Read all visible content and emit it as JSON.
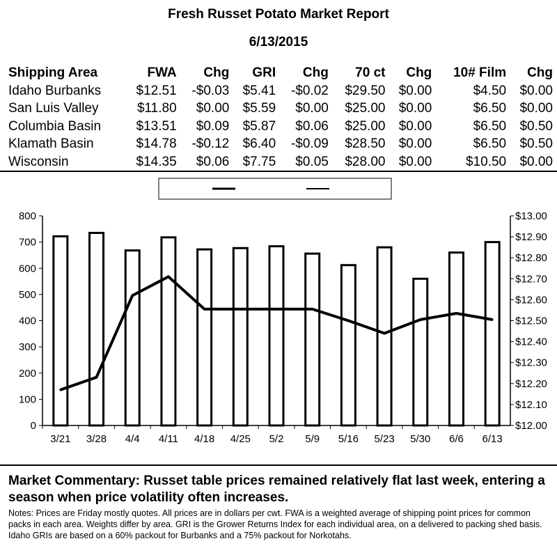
{
  "report": {
    "title": "Fresh Russet Potato Market Report",
    "date": "6/13/2015"
  },
  "table": {
    "headers": [
      "Shipping Area",
      "FWA",
      "Chg",
      "GRI",
      "Chg",
      "70 ct",
      "Chg",
      "10# Film",
      "Chg"
    ],
    "rows": [
      [
        "Idaho Burbanks",
        "$12.51",
        "-$0.03",
        "$5.41",
        "-$0.02",
        "$29.50",
        "$0.00",
        "$4.50",
        "$0.00"
      ],
      [
        "San Luis Valley",
        "$11.80",
        "$0.00",
        "$5.59",
        "$0.00",
        "$25.00",
        "$0.00",
        "$6.50",
        "$0.00"
      ],
      [
        "Columbia Basin",
        "$13.51",
        "$0.09",
        "$5.87",
        "$0.06",
        "$25.00",
        "$0.00",
        "$6.50",
        "$0.50"
      ],
      [
        "Klamath Basin",
        "$14.78",
        "-$0.12",
        "$6.40",
        "-$0.09",
        "$28.50",
        "$0.00",
        "$6.50",
        "$0.50"
      ],
      [
        "Wisconsin",
        "$14.35",
        "$0.06",
        "$7.75",
        "$0.05",
        "$28.00",
        "$0.00",
        "$10.50",
        "$0.00"
      ]
    ]
  },
  "chart_data": {
    "type": "bar",
    "title": "",
    "categories": [
      "3/21",
      "3/28",
      "4/4",
      "4/11",
      "4/18",
      "4/25",
      "5/2",
      "5/9",
      "5/16",
      "5/23",
      "5/30",
      "6/6",
      "6/13"
    ],
    "series": [
      {
        "type": "bar",
        "axis": "left",
        "values": [
          722,
          735,
          668,
          718,
          672,
          677,
          684,
          656,
          612,
          680,
          560,
          660,
          700
        ]
      },
      {
        "type": "line",
        "axis": "right",
        "values": [
          12.17,
          12.23,
          12.62,
          12.71,
          12.555,
          12.555,
          12.555,
          12.555,
          12.5,
          12.44,
          12.505,
          12.535,
          12.505
        ]
      }
    ],
    "y_left": {
      "min": 0,
      "max": 800,
      "step": 100,
      "ticks": [
        "0",
        "100",
        "200",
        "300",
        "400",
        "500",
        "600",
        "700",
        "800"
      ]
    },
    "y_right": {
      "min": 12.0,
      "max": 13.0,
      "step": 0.1,
      "ticks": [
        "$12.00",
        "$12.10",
        "$12.20",
        "$12.30",
        "$12.40",
        "$12.50",
        "$12.60",
        "$12.70",
        "$12.80",
        "$12.90",
        "$13.00"
      ]
    },
    "grid": false,
    "legend": "top-center"
  },
  "commentary": "Market Commentary: Russet table prices remained relatively flat last week, entering a season when price volatility often increases.",
  "notes": "Notes: Prices are Friday mostly quotes. All prices are in dollars per cwt. FWA is a weighted average of shipping point prices for common packs in each area. Weights differ by area. GRI is the Grower Returns Index for each individual area, on a delivered to packing shed basis. Idaho GRIs are based on a 60% packout for Burbanks and a 75% packout for Norkotahs.",
  "colors": {
    "ink": "#000000",
    "background": "#ffffff",
    "bar_fill": "#ffffff"
  }
}
